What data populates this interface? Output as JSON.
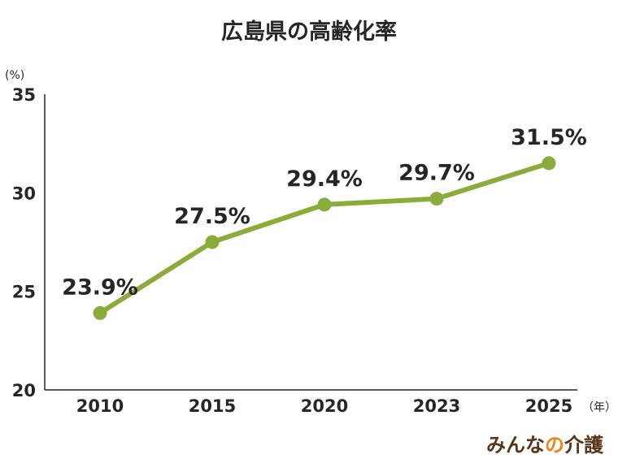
{
  "chart_data": {
    "type": "line",
    "title": "広島県の高齢化率",
    "categories": [
      "2010",
      "2015",
      "2020",
      "2023",
      "2025"
    ],
    "values": [
      23.9,
      27.5,
      29.4,
      29.7,
      31.5
    ],
    "value_labels": [
      "23.9%",
      "27.5%",
      "29.4%",
      "29.7%",
      "31.5%"
    ],
    "y_unit": "(%)",
    "x_unit": "（年）",
    "ylim": [
      20,
      35
    ],
    "yticks": [
      20,
      25,
      30,
      35
    ],
    "grid": false,
    "legend": "none"
  },
  "logo": {
    "part1": "みんな",
    "part2": "の",
    "part3": "介護"
  },
  "colors": {
    "line": "#8aac3b",
    "axis": "#262626",
    "brand_dark": "#5a3416",
    "brand_accent": "#e8861a"
  }
}
